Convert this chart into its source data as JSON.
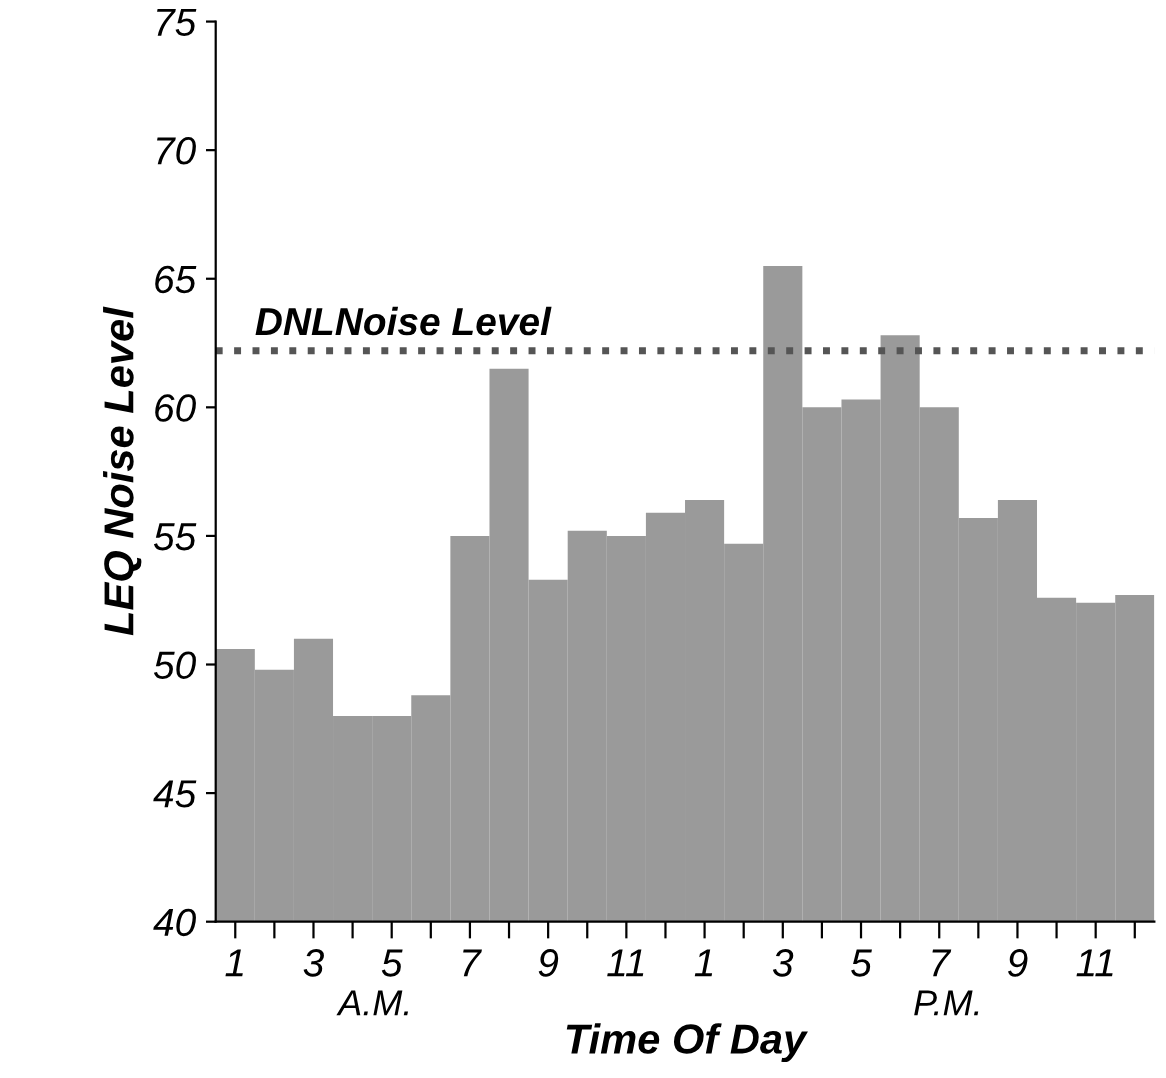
{
  "chart_data": {
    "type": "bar",
    "xlabel": "Time Of Day",
    "ylabel": "LEQ Noise Level",
    "categories": [
      "1",
      null,
      "3",
      null,
      "5",
      null,
      "7",
      null,
      "9",
      null,
      "11",
      null,
      "1",
      null,
      "3",
      null,
      "5",
      null,
      "7",
      null,
      "9",
      null,
      "11",
      null
    ],
    "values": [
      50.6,
      49.8,
      51.0,
      48.0,
      48.0,
      48.8,
      55.0,
      61.5,
      53.3,
      55.2,
      55.0,
      55.9,
      56.4,
      54.7,
      65.5,
      60.0,
      60.3,
      62.8,
      60.0,
      55.7,
      56.4,
      52.6,
      52.4,
      52.7
    ],
    "color": "#9a9a9a",
    "ylim": [
      40,
      75
    ],
    "yticks": [
      40,
      45,
      50,
      55,
      60,
      65,
      70,
      75
    ],
    "grid": false,
    "legend": false,
    "ref_lines": [
      {
        "axis": "y",
        "value": 62.2,
        "label": "DNLNoise Level",
        "color": "#555555",
        "line_style": "dotted"
      }
    ],
    "annotations": [
      "A.M.",
      "P.M."
    ]
  }
}
